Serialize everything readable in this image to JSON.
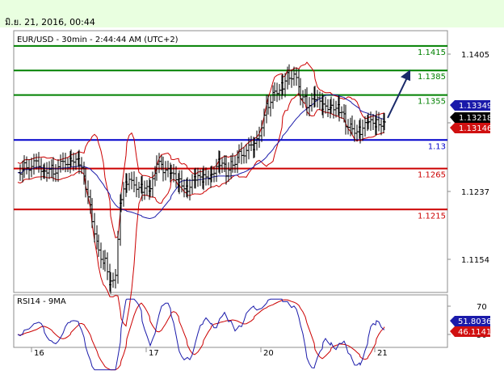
{
  "timestamp": "มิ.ย. 21, 2016, 00:44",
  "chart_data": {
    "type": "candlestick",
    "title": "EUR/USD - 30min - 2:44:44 AM (UTC+2)",
    "price_axis": {
      "ticks": [
        1.1405,
        1.1321,
        1.1237,
        1.1154
      ],
      "tick_labels": [
        "1.1405",
        "",
        "1.1237",
        "1.1154"
      ],
      "range": [
        1.1085,
        1.1468
      ]
    },
    "date_axis": {
      "labels": [
        "16",
        "17",
        "20",
        "21"
      ]
    },
    "levels": [
      {
        "price": 1.1415,
        "label": "1.1415",
        "color": "#008000"
      },
      {
        "price": 1.1385,
        "label": "1.1385",
        "color": "#008000"
      },
      {
        "price": 1.1355,
        "label": "1.1355",
        "color": "#008000"
      },
      {
        "price": 1.13,
        "label": "1.13",
        "color": "#0000cc"
      },
      {
        "price": 1.1265,
        "label": "1.1265",
        "color": "#cc0000"
      },
      {
        "price": 1.1215,
        "label": "1.1215",
        "color": "#cc0000"
      }
    ],
    "price_tags": [
      {
        "label": "1.13349",
        "price": 1.13349,
        "bg": "#1a1aaa",
        "fg": "#ffffff"
      },
      {
        "label": "1.13218",
        "price": 1.13218,
        "bg": "#000000",
        "fg": "#ffffff"
      },
      {
        "label": "1.13146",
        "price": 1.13146,
        "bg": "#d01010",
        "fg": "#ffffff"
      }
    ],
    "rsi_panel": {
      "title": "RSI14 - 9MA",
      "ticks": [
        70,
        50
      ],
      "tags": [
        {
          "label": "51.8036",
          "value": 51.8036,
          "bg": "#1a1aaa",
          "fg": "#ffffff"
        },
        {
          "label": "46.1141",
          "value": 46.1141,
          "bg": "#d01010",
          "fg": "#ffffff"
        }
      ]
    },
    "overlays": [
      "bollinger-upper",
      "bollinger-lower",
      "moving-average",
      "projection-arrow"
    ],
    "colors": {
      "bollinger": "#cc0000",
      "ma": "#1a1aaa",
      "candle": "#000000",
      "rsi": "#1a1aaa",
      "rsi_ma": "#cc0000"
    }
  }
}
